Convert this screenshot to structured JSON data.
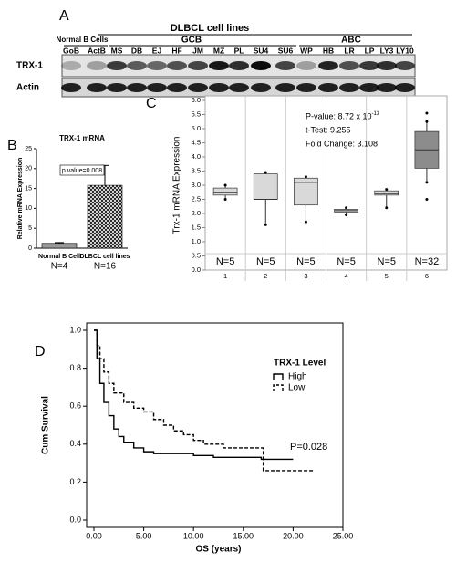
{
  "blot": {
    "panel": "A",
    "header": "DLBCL cell lines",
    "groups": [
      "Normal B Cells",
      "GCB",
      "ABC"
    ],
    "lanes": [
      "GoB",
      "ActB",
      "MS",
      "DB",
      "EJ",
      "HF",
      "JM",
      "MZ",
      "PL",
      "SU4",
      "SU6",
      "WP",
      "HB",
      "LR",
      "LP",
      "LY3",
      "LY10"
    ],
    "rows": [
      "TRX-1",
      "Actin"
    ]
  },
  "chart_data": [
    {
      "type": "bar",
      "panel": "B",
      "title": "TRX-1 mRNA",
      "ylabel": "Relative mRNA Expression",
      "categories": [
        "Normal B Cell",
        "DLBCL cell lines"
      ],
      "n_labels": [
        "N=4",
        "N=16"
      ],
      "values": [
        1.2,
        15.8
      ],
      "errors": [
        0.2,
        5
      ],
      "annotation": "p value=0.008",
      "ylim": [
        0,
        25
      ],
      "yticks": [
        0,
        5,
        10,
        15,
        20,
        25
      ],
      "color": "#999999"
    },
    {
      "type": "box",
      "panel": "C",
      "ylabel": "Trx-1 mRNA Expression",
      "categories": [
        "1",
        "2",
        "3",
        "4",
        "5",
        "6"
      ],
      "n_labels": [
        "N=5",
        "N=5",
        "N=5",
        "N=5",
        "N=5",
        "N=32"
      ],
      "whislo": [
        2.5,
        1.6,
        1.7,
        1.95,
        2.2,
        3.1
      ],
      "q1": [
        2.65,
        2.5,
        2.3,
        2.05,
        2.65,
        3.6
      ],
      "med": [
        2.75,
        2.5,
        3.1,
        2.1,
        2.7,
        4.25
      ],
      "q3": [
        2.9,
        3.4,
        3.25,
        2.15,
        2.8,
        4.9
      ],
      "whishi": [
        3.0,
        3.45,
        3.3,
        2.2,
        2.85,
        5.25
      ],
      "outliers": [
        [],
        [],
        [],
        [],
        [],
        [
          2.5,
          5.55
        ]
      ],
      "colors": [
        "#d9d9d9",
        "#d9d9d9",
        "#d9d9d9",
        "#d9d9d9",
        "#d9d9d9",
        "#8c8c8c"
      ],
      "annotations": [
        {
          "text": "P-value: 8.72 x 10",
          "sup": "-13"
        },
        {
          "text": "t-Test:    9.255"
        },
        {
          "text": "Fold Change: 3.108"
        }
      ],
      "ylim": [
        0,
        6
      ],
      "yticks": [
        {
          "value": 0,
          "label": "0.0"
        },
        {
          "value": 0.5,
          "label": "0.5"
        },
        {
          "value": 1,
          "label": "1.0"
        },
        {
          "value": 1.5,
          "label": "1.5"
        },
        {
          "value": 2,
          "label": "2.0"
        },
        {
          "value": 2.5,
          "label": "2.5"
        },
        {
          "value": 3,
          "label": "3.0"
        },
        {
          "value": 3.5,
          "label": "3.5"
        },
        {
          "value": 4,
          "label": "4.0"
        },
        {
          "value": 4.5,
          "label": "4.5"
        },
        {
          "value": 5,
          "label": "5.0"
        },
        {
          "value": 5.5,
          "label": "5.5"
        },
        {
          "value": 6,
          "label": "6.0"
        }
      ]
    },
    {
      "type": "line",
      "panel": "D",
      "step": true,
      "xlabel": "OS  (years)",
      "ylabel": "Cum Survival",
      "legend_title": "TRX-1 Level",
      "annotation": "P=0.028",
      "series": [
        {
          "name": "High",
          "dash": false,
          "x": [
            0,
            0.3,
            0.6,
            1,
            1.5,
            2,
            2.5,
            3,
            4,
            5,
            6,
            8,
            10,
            12,
            16.8,
            20
          ],
          "values": [
            1,
            0.85,
            0.72,
            0.62,
            0.55,
            0.48,
            0.44,
            0.41,
            0.38,
            0.36,
            0.35,
            0.35,
            0.34,
            0.33,
            0.32,
            0.32
          ]
        },
        {
          "name": "Low",
          "dash": true,
          "x": [
            0,
            0.3,
            0.6,
            1,
            1.5,
            2,
            3,
            4,
            5,
            6,
            7,
            8,
            9,
            10,
            11,
            13,
            16.8,
            17,
            22
          ],
          "values": [
            1,
            0.92,
            0.85,
            0.78,
            0.72,
            0.67,
            0.62,
            0.59,
            0.57,
            0.53,
            0.5,
            0.47,
            0.45,
            0.42,
            0.4,
            0.38,
            0.38,
            0.26,
            0.26
          ]
        }
      ],
      "xlim": [
        0,
        25
      ],
      "ylim": [
        0,
        1
      ],
      "xticks": [
        {
          "value": 0,
          "label": "0.00"
        },
        {
          "value": 5,
          "label": "5.00"
        },
        {
          "value": 10,
          "label": "10.00"
        },
        {
          "value": 15,
          "label": "15.00"
        },
        {
          "value": 20,
          "label": "20.00"
        },
        {
          "value": 25,
          "label": "25.00"
        }
      ],
      "yticks": [
        {
          "value": 0,
          "label": "0.0"
        },
        {
          "value": 0.2,
          "label": "0.2"
        },
        {
          "value": 0.4,
          "label": "0.4"
        },
        {
          "value": 0.6,
          "label": "0.6"
        },
        {
          "value": 0.8,
          "label": "0.8"
        },
        {
          "value": 1,
          "label": "1.0"
        }
      ]
    }
  ]
}
